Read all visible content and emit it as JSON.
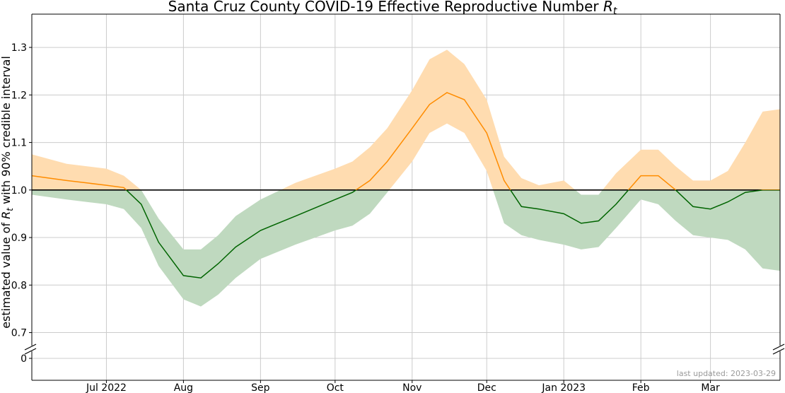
{
  "chart_data": {
    "type": "line",
    "title": "Santa Cruz County COVID-19 Effective Reproductive Number ",
    "title_symbol": "R",
    "title_subscript": "t",
    "ylabel_parts": [
      "estimated value of ",
      "R",
      "t",
      " with 90% credible interval"
    ],
    "x_tick_labels": [
      "Jul 2022",
      "Aug",
      "Sep",
      "Oct",
      "Nov",
      "Dec",
      "Jan 2023",
      "Feb",
      "Mar"
    ],
    "x_tick_dates": [
      "2022-07-01",
      "2022-08-01",
      "2022-09-01",
      "2022-10-01",
      "2022-11-01",
      "2022-12-01",
      "2023-01-01",
      "2023-02-01",
      "2023-03-01"
    ],
    "xlim": [
      "2022-06-01",
      "2023-03-29"
    ],
    "y_ticks": [
      "0.7",
      "0.8",
      "0.9",
      "1.0",
      "1.1",
      "1.2",
      "1.3"
    ],
    "y_break_tick": "0",
    "ylim": [
      0.68,
      1.37
    ],
    "reference_line": 1.0,
    "grid": true,
    "last_updated": "last updated: 2023-03-29",
    "colors": {
      "above_line": "#ff8c00",
      "above_band": "#ffdcb0",
      "below_line": "#006400",
      "below_band": "#bfd9bf",
      "reference": "#000000",
      "grid": "#cccccc"
    },
    "series": [
      {
        "name": "",
        "x": [
          "2022-06-01",
          "2022-06-15",
          "2022-07-01",
          "2022-07-08",
          "2022-07-15",
          "2022-07-22",
          "2022-08-01",
          "2022-08-08",
          "2022-08-15",
          "2022-08-22",
          "2022-09-01",
          "2022-09-15",
          "2022-10-01",
          "2022-10-08",
          "2022-10-15",
          "2022-10-22",
          "2022-11-01",
          "2022-11-08",
          "2022-11-15",
          "2022-11-22",
          "2022-12-01",
          "2022-12-08",
          "2022-12-15",
          "2022-12-22",
          "2023-01-01",
          "2023-01-08",
          "2023-01-15",
          "2023-01-22",
          "2023-02-01",
          "2023-02-08",
          "2023-02-15",
          "2023-02-22",
          "2023-03-01",
          "2023-03-08",
          "2023-03-15",
          "2023-03-22",
          "2023-03-29"
        ],
        "estimate": [
          1.03,
          1.02,
          1.01,
          1.005,
          0.97,
          0.89,
          0.82,
          0.815,
          0.845,
          0.88,
          0.915,
          0.945,
          0.98,
          0.995,
          1.02,
          1.06,
          1.13,
          1.18,
          1.205,
          1.19,
          1.12,
          1.02,
          0.965,
          0.96,
          0.95,
          0.93,
          0.935,
          0.97,
          1.03,
          1.03,
          1.0,
          0.965,
          0.96,
          0.975,
          0.995,
          1.0,
          1.0
        ],
        "lower": [
          0.99,
          0.98,
          0.97,
          0.96,
          0.92,
          0.84,
          0.77,
          0.755,
          0.78,
          0.815,
          0.855,
          0.885,
          0.915,
          0.925,
          0.95,
          0.995,
          1.06,
          1.12,
          1.14,
          1.12,
          1.04,
          0.93,
          0.905,
          0.895,
          0.885,
          0.875,
          0.88,
          0.92,
          0.98,
          0.97,
          0.935,
          0.905,
          0.9,
          0.895,
          0.875,
          0.835,
          0.83
        ],
        "upper": [
          1.075,
          1.055,
          1.045,
          1.03,
          1.0,
          0.94,
          0.875,
          0.875,
          0.905,
          0.945,
          0.98,
          1.015,
          1.045,
          1.06,
          1.09,
          1.13,
          1.21,
          1.275,
          1.295,
          1.265,
          1.19,
          1.07,
          1.025,
          1.01,
          1.02,
          0.99,
          0.99,
          1.035,
          1.085,
          1.085,
          1.05,
          1.02,
          1.02,
          1.04,
          1.1,
          1.165,
          1.17
        ]
      }
    ]
  }
}
